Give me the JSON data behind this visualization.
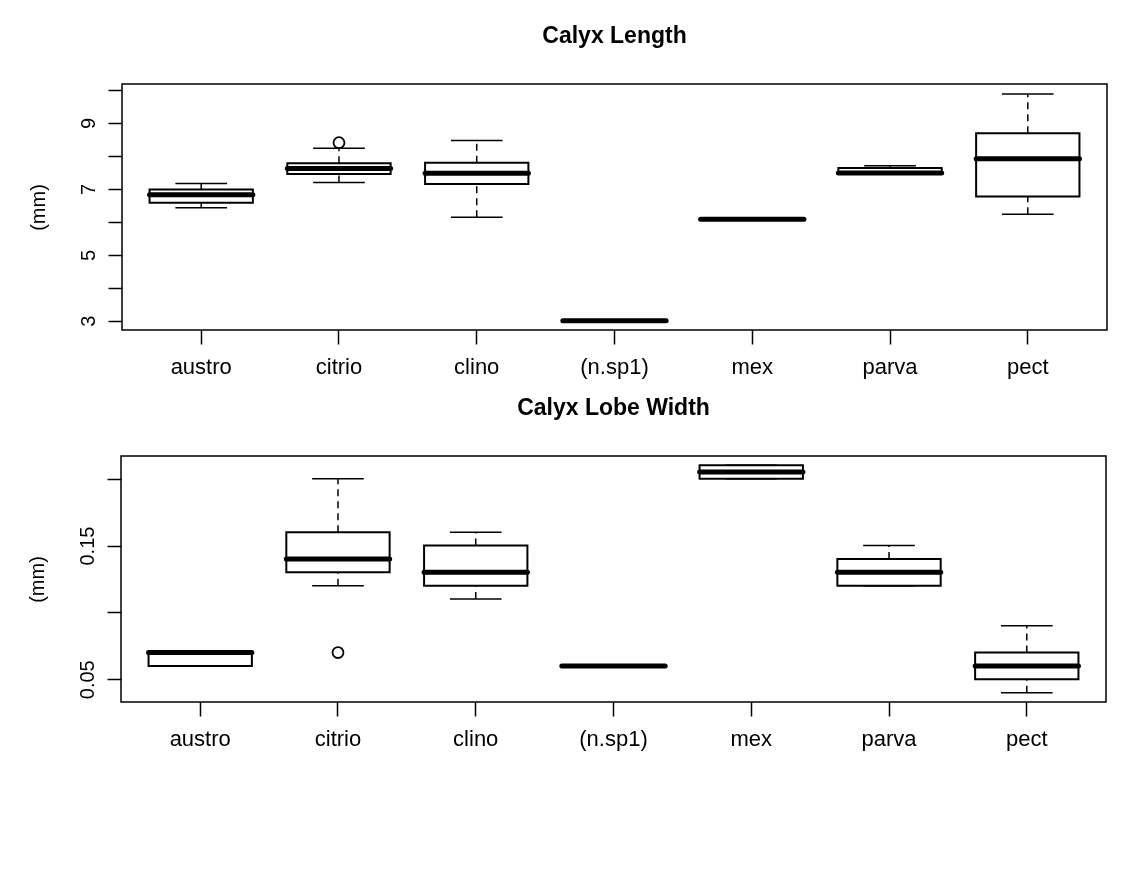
{
  "chart_data": [
    {
      "type": "box",
      "title": "Calyx Length",
      "ylabel": "(mm)",
      "categories": [
        "austro",
        "citrio",
        "clino",
        "(n.sp1)",
        "mex",
        "parva",
        "pect"
      ],
      "boxes": [
        {
          "low": 6.43,
          "q1": 6.58,
          "median": 6.82,
          "q3": 6.98,
          "high": 7.16
        },
        {
          "low": 7.19,
          "q1": 7.45,
          "median": 7.62,
          "q3": 7.78,
          "high": 8.23,
          "outliers": [
            8.4
          ]
        },
        {
          "low": 6.14,
          "q1": 7.15,
          "median": 7.47,
          "q3": 7.79,
          "high": 8.47
        },
        {
          "low": 3.0,
          "q1": 3.0,
          "median": 3.0,
          "q3": 3.0,
          "high": 3.0
        },
        {
          "low": 6.08,
          "q1": 6.08,
          "median": 6.08,
          "q3": 6.08,
          "high": 6.08
        },
        {
          "low": 7.48,
          "q1": 7.48,
          "median": 7.48,
          "q3": 7.63,
          "high": 7.7
        },
        {
          "low": 6.23,
          "q1": 6.77,
          "median": 7.91,
          "q3": 8.69,
          "high": 9.88
        }
      ],
      "ylim": [
        2.72,
        10.18
      ],
      "yticks": [
        3,
        {
          "value": 4,
          "label": null
        },
        5,
        {
          "value": 6,
          "label": null
        },
        7,
        {
          "value": 8,
          "label": null
        },
        9,
        {
          "value": 10,
          "label": null
        }
      ]
    },
    {
      "type": "box",
      "title": "Calyx Lobe Width",
      "ylabel": "(mm)",
      "categories": [
        "austro",
        "citrio",
        "clino",
        "(n.sp1)",
        "mex",
        "parva",
        "pect"
      ],
      "boxes": [
        {
          "low": 0.06,
          "q1": 0.06,
          "median": 0.07,
          "q3": 0.07,
          "high": 0.07
        },
        {
          "low": 0.12,
          "q1": 0.13,
          "median": 0.14,
          "q3": 0.16,
          "high": 0.2,
          "outliers": [
            0.07
          ]
        },
        {
          "low": 0.11,
          "q1": 0.12,
          "median": 0.13,
          "q3": 0.15,
          "high": 0.16
        },
        {
          "low": 0.06,
          "q1": 0.06,
          "median": 0.06,
          "q3": 0.06,
          "high": 0.06
        },
        {
          "low": 0.2,
          "q1": 0.2,
          "median": 0.205,
          "q3": 0.21,
          "high": 0.21
        },
        {
          "low": 0.12,
          "q1": 0.12,
          "median": 0.13,
          "q3": 0.14,
          "high": 0.15
        },
        {
          "low": 0.04,
          "q1": 0.05,
          "median": 0.06,
          "q3": 0.07,
          "high": 0.09
        }
      ],
      "ylim": [
        0.033,
        0.217
      ],
      "yticks": [
        0.05,
        {
          "value": 0.1,
          "label": null
        },
        0.15,
        {
          "value": 0.2,
          "label": null
        }
      ]
    }
  ]
}
